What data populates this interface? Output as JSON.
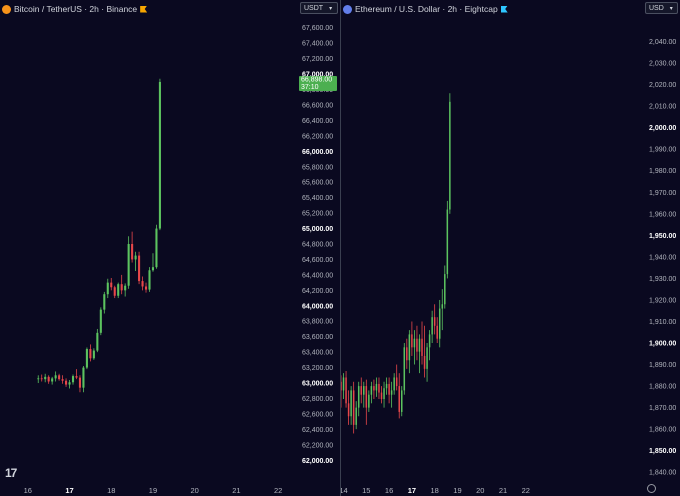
{
  "colors": {
    "up": "#5cc35f",
    "down": "#e8474a",
    "wick_up": "#5cc35f",
    "wick_down": "#e8474a",
    "price_label_bg": "#4caf50"
  },
  "logo": {
    "text": "17"
  },
  "left": {
    "title": "Bitcoin / TetherUS · 2h · Binance",
    "symbol_icon": "bitcoin-icon",
    "symbol_icon_color": "#f7931a",
    "flag_icon_color": "#f7a600",
    "currency": "USDT",
    "price_label": {
      "price": "66,898.00",
      "countdown": "37:10"
    }
  },
  "right": {
    "title": "Ethereum / U.S. Dollar · 2h · Eightcap",
    "symbol_icon": "ethereum-icon",
    "symbol_icon_color": "#627eea",
    "flag_icon_color": "#2ec6ff",
    "currency": "USD"
  },
  "chart_data": [
    {
      "type": "candlestick",
      "title": "Bitcoin / TetherUS · 2h · Binance",
      "ylim": [
        61900,
        67700
      ],
      "yticks": [
        {
          "value": 67600,
          "label": "67,600.00",
          "bold": false
        },
        {
          "value": 67400,
          "label": "67,400.00",
          "bold": false
        },
        {
          "value": 67200,
          "label": "67,200.00",
          "bold": false
        },
        {
          "value": 67000,
          "label": "67,000.00",
          "bold": true
        },
        {
          "value": 66800,
          "label": "66,800.00",
          "bold": false
        },
        {
          "value": 66600,
          "label": "66,600.00",
          "bold": false
        },
        {
          "value": 66400,
          "label": "66,400.00",
          "bold": false
        },
        {
          "value": 66200,
          "label": "66,200.00",
          "bold": false
        },
        {
          "value": 66000,
          "label": "66,000.00",
          "bold": true
        },
        {
          "value": 65800,
          "label": "65,800.00",
          "bold": false
        },
        {
          "value": 65600,
          "label": "65,600.00",
          "bold": false
        },
        {
          "value": 65400,
          "label": "65,400.00",
          "bold": false
        },
        {
          "value": 65200,
          "label": "65,200.00",
          "bold": false
        },
        {
          "value": 65000,
          "label": "65,000.00",
          "bold": true
        },
        {
          "value": 64800,
          "label": "64,800.00",
          "bold": false
        },
        {
          "value": 64600,
          "label": "64,600.00",
          "bold": false
        },
        {
          "value": 64400,
          "label": "64,400.00",
          "bold": false
        },
        {
          "value": 64200,
          "label": "64,200.00",
          "bold": false
        },
        {
          "value": 64000,
          "label": "64,000.00",
          "bold": true
        },
        {
          "value": 63800,
          "label": "63,800.00",
          "bold": false
        },
        {
          "value": 63600,
          "label": "63,600.00",
          "bold": false
        },
        {
          "value": 63400,
          "label": "63,400.00",
          "bold": false
        },
        {
          "value": 63200,
          "label": "63,200.00",
          "bold": false
        },
        {
          "value": 63000,
          "label": "63,000.00",
          "bold": true
        },
        {
          "value": 62800,
          "label": "62,800.00",
          "bold": false
        },
        {
          "value": 62600,
          "label": "62,600.00",
          "bold": false
        },
        {
          "value": 62400,
          "label": "62,400.00",
          "bold": false
        },
        {
          "value": 62200,
          "label": "62,200.00",
          "bold": false
        },
        {
          "value": 62000,
          "label": "62,000.00",
          "bold": true
        }
      ],
      "xticks": [
        {
          "t": -3,
          "label": "16",
          "bold": false
        },
        {
          "t": 9,
          "label": "17",
          "bold": true
        },
        {
          "t": 21,
          "label": "18",
          "bold": false
        },
        {
          "t": 33,
          "label": "19",
          "bold": false
        },
        {
          "t": 45,
          "label": "20",
          "bold": false
        },
        {
          "t": 57,
          "label": "21",
          "bold": false
        },
        {
          "t": 69,
          "label": "22",
          "bold": false
        }
      ],
      "xlim": [
        -11,
        75
      ],
      "last_price": 66898,
      "candles": [
        [
          63050,
          63100,
          63000,
          63060
        ],
        [
          63060,
          63110,
          63020,
          63050
        ],
        [
          63050,
          63120,
          63010,
          63080
        ],
        [
          63080,
          63100,
          62990,
          63020
        ],
        [
          63020,
          63080,
          62980,
          63060
        ],
        [
          63060,
          63150,
          63020,
          63100
        ],
        [
          63100,
          63120,
          63030,
          63050
        ],
        [
          63050,
          63100,
          62990,
          63030
        ],
        [
          63030,
          63060,
          62950,
          62980
        ],
        [
          62980,
          63040,
          62930,
          63010
        ],
        [
          63010,
          63110,
          62980,
          63090
        ],
        [
          63090,
          63180,
          63050,
          63070
        ],
        [
          63070,
          63100,
          62880,
          62940
        ],
        [
          62940,
          63220,
          62880,
          63200
        ],
        [
          63200,
          63460,
          63180,
          63440
        ],
        [
          63440,
          63500,
          63280,
          63320
        ],
        [
          63320,
          63450,
          63300,
          63420
        ],
        [
          63420,
          63700,
          63400,
          63650
        ],
        [
          63650,
          63980,
          63620,
          63950
        ],
        [
          63950,
          64180,
          63900,
          64150
        ],
        [
          64150,
          64350,
          64100,
          64300
        ],
        [
          64300,
          64360,
          64200,
          64240
        ],
        [
          64240,
          64260,
          64100,
          64130
        ],
        [
          64130,
          64300,
          64100,
          64280
        ],
        [
          64280,
          64400,
          64150,
          64200
        ],
        [
          64200,
          64290,
          64120,
          64260
        ],
        [
          64260,
          64900,
          64220,
          64800
        ],
        [
          64800,
          64960,
          64560,
          64600
        ],
        [
          64600,
          64700,
          64450,
          64650
        ],
        [
          64650,
          64700,
          64280,
          64320
        ],
        [
          64320,
          64380,
          64200,
          64250
        ],
        [
          64250,
          64300,
          64170,
          64210
        ],
        [
          64210,
          64500,
          64180,
          64460
        ],
        [
          64460,
          64680,
          64440,
          64500
        ],
        [
          64500,
          65050,
          64480,
          65000
        ],
        [
          65000,
          66940,
          64980,
          66898
        ]
      ]
    },
    {
      "type": "candlestick",
      "title": "Ethereum / U.S. Dollar · 2h · Eightcap",
      "ylim": [
        1835,
        2050
      ],
      "yticks": [
        {
          "value": 2040,
          "label": "2,040.00",
          "bold": false
        },
        {
          "value": 2030,
          "label": "2,030.00",
          "bold": false
        },
        {
          "value": 2020,
          "label": "2,020.00",
          "bold": false
        },
        {
          "value": 2010,
          "label": "2,010.00",
          "bold": false
        },
        {
          "value": 2000,
          "label": "2,000.00",
          "bold": true
        },
        {
          "value": 1990,
          "label": "1,990.00",
          "bold": false
        },
        {
          "value": 1980,
          "label": "1,980.00",
          "bold": false
        },
        {
          "value": 1970,
          "label": "1,970.00",
          "bold": false
        },
        {
          "value": 1960,
          "label": "1,960.00",
          "bold": false
        },
        {
          "value": 1950,
          "label": "1,950.00",
          "bold": true
        },
        {
          "value": 1940,
          "label": "1,940.00",
          "bold": false
        },
        {
          "value": 1930,
          "label": "1,930.00",
          "bold": false
        },
        {
          "value": 1920,
          "label": "1,920.00",
          "bold": false
        },
        {
          "value": 1910,
          "label": "1,910.00",
          "bold": false
        },
        {
          "value": 1900,
          "label": "1,900.00",
          "bold": true
        },
        {
          "value": 1890,
          "label": "1,890.00",
          "bold": false
        },
        {
          "value": 1880,
          "label": "1,880.00",
          "bold": false
        },
        {
          "value": 1870,
          "label": "1,870.00",
          "bold": false
        },
        {
          "value": 1860,
          "label": "1,860.00",
          "bold": false
        },
        {
          "value": 1850,
          "label": "1,850.00",
          "bold": true
        },
        {
          "value": 1840,
          "label": "1,840.00",
          "bold": false
        }
      ],
      "xticks": [
        {
          "t": 1,
          "label": "14",
          "bold": false
        },
        {
          "t": 10,
          "label": "15",
          "bold": false
        },
        {
          "t": 19,
          "label": "16",
          "bold": false
        },
        {
          "t": 28,
          "label": "17",
          "bold": true
        },
        {
          "t": 37,
          "label": "18",
          "bold": false
        },
        {
          "t": 46,
          "label": "19",
          "bold": false
        },
        {
          "t": 55,
          "label": "20",
          "bold": false
        },
        {
          "t": 64,
          "label": "21",
          "bold": false
        },
        {
          "t": 73,
          "label": "22",
          "bold": false
        }
      ],
      "xlim": [
        0,
        79
      ],
      "candles": [
        [
          1882,
          1885,
          1870,
          1878
        ],
        [
          1878,
          1886,
          1874,
          1884
        ],
        [
          1884,
          1887,
          1870,
          1872
        ],
        [
          1872,
          1878,
          1862,
          1866
        ],
        [
          1866,
          1880,
          1862,
          1878
        ],
        [
          1878,
          1882,
          1858,
          1862
        ],
        [
          1862,
          1873,
          1860,
          1870
        ],
        [
          1870,
          1882,
          1866,
          1880
        ],
        [
          1880,
          1884,
          1872,
          1876
        ],
        [
          1876,
          1882,
          1870,
          1880
        ],
        [
          1880,
          1883,
          1862,
          1870
        ],
        [
          1870,
          1878,
          1868,
          1876
        ],
        [
          1876,
          1882,
          1872,
          1880
        ],
        [
          1880,
          1883,
          1874,
          1878
        ],
        [
          1878,
          1884,
          1875,
          1881
        ],
        [
          1881,
          1884,
          1874,
          1877
        ],
        [
          1877,
          1880,
          1872,
          1874
        ],
        [
          1874,
          1882,
          1870,
          1879
        ],
        [
          1879,
          1884,
          1876,
          1881
        ],
        [
          1881,
          1884,
          1872,
          1876
        ],
        [
          1876,
          1882,
          1870,
          1878
        ],
        [
          1878,
          1886,
          1876,
          1884
        ],
        [
          1884,
          1890,
          1878,
          1880
        ],
        [
          1880,
          1886,
          1865,
          1868
        ],
        [
          1868,
          1880,
          1866,
          1878
        ],
        [
          1878,
          1900,
          1876,
          1898
        ],
        [
          1898,
          1902,
          1888,
          1892
        ],
        [
          1892,
          1906,
          1886,
          1904
        ],
        [
          1904,
          1910,
          1894,
          1898
        ],
        [
          1898,
          1906,
          1890,
          1902
        ],
        [
          1902,
          1908,
          1892,
          1896
        ],
        [
          1896,
          1904,
          1886,
          1902
        ],
        [
          1902,
          1910,
          1890,
          1894
        ],
        [
          1894,
          1908,
          1884,
          1888
        ],
        [
          1888,
          1900,
          1882,
          1898
        ],
        [
          1898,
          1906,
          1892,
          1904
        ],
        [
          1904,
          1915,
          1900,
          1912
        ],
        [
          1912,
          1918,
          1904,
          1908
        ],
        [
          1908,
          1912,
          1900,
          1902
        ],
        [
          1902,
          1920,
          1898,
          1916
        ],
        [
          1916,
          1925,
          1906,
          1918
        ],
        [
          1918,
          1936,
          1916,
          1932
        ],
        [
          1932,
          1966,
          1930,
          1962
        ],
        [
          1962,
          2016,
          1960,
          2012
        ]
      ]
    }
  ]
}
